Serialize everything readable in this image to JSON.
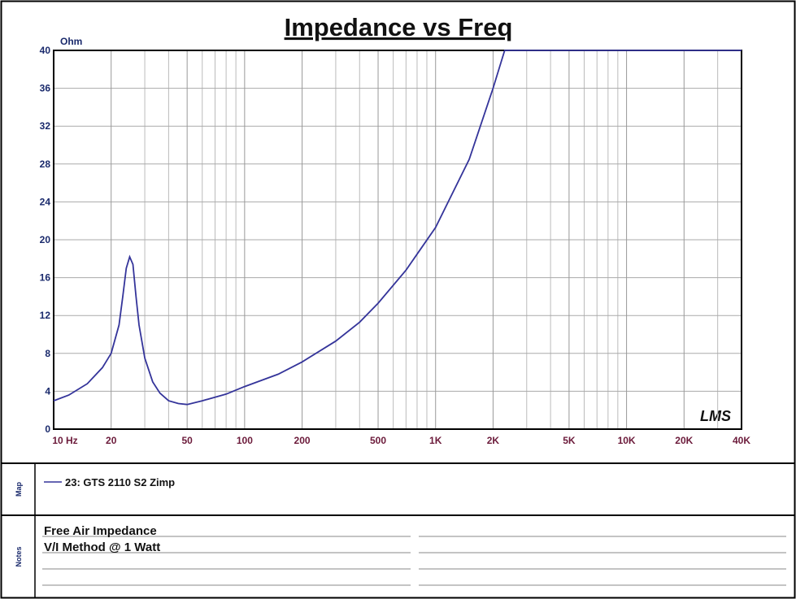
{
  "chart_data": {
    "type": "line",
    "title": "Impedance vs Freq",
    "ylabel": "Ohm",
    "logo": "LMS",
    "xscale": "log",
    "grid": true,
    "xlim": [
      10,
      40000
    ],
    "ylim": [
      0,
      40
    ],
    "xticks": [
      {
        "value": 10,
        "label": "10 Hz"
      },
      20,
      50,
      100,
      200,
      500,
      {
        "value": 1000,
        "label": "1K"
      },
      {
        "value": 2000,
        "label": "2K"
      },
      {
        "value": 5000,
        "label": "5K"
      },
      {
        "value": 10000,
        "label": "10K"
      },
      {
        "value": 20000,
        "label": "20K"
      },
      {
        "value": 40000,
        "label": "40K"
      }
    ],
    "xminor": [
      30,
      40,
      60,
      70,
      80,
      90,
      300,
      400,
      600,
      700,
      800,
      900,
      3000,
      4000,
      6000,
      7000,
      8000,
      9000,
      30000
    ],
    "yticks": [
      0,
      4,
      8,
      12,
      16,
      20,
      24,
      28,
      32,
      36,
      40
    ],
    "x": [
      10,
      12,
      15,
      18,
      20,
      22,
      23,
      24,
      25,
      26,
      27,
      28,
      30,
      33,
      36,
      40,
      45,
      50,
      60,
      80,
      100,
      150,
      200,
      300,
      400,
      500,
      700,
      1000,
      1500,
      2000,
      2300,
      40000
    ],
    "series": [
      {
        "name": "23: GTS 2110 S2  Zimp",
        "color": "#34349a",
        "values": [
          3.0,
          3.6,
          4.8,
          6.5,
          8.0,
          11,
          14,
          17,
          18.2,
          17.4,
          14,
          11,
          7.5,
          5,
          3.8,
          3.0,
          2.7,
          2.6,
          3.0,
          3.7,
          4.5,
          5.8,
          7.1,
          9.3,
          11.3,
          13.3,
          16.8,
          21.3,
          28.5,
          36,
          40,
          40
        ]
      }
    ]
  },
  "panel": {
    "map_label": "Map",
    "notes_label": "Notes",
    "notes": [
      "Free Air Impedance",
      "V/I Method @ 1 Watt"
    ]
  }
}
